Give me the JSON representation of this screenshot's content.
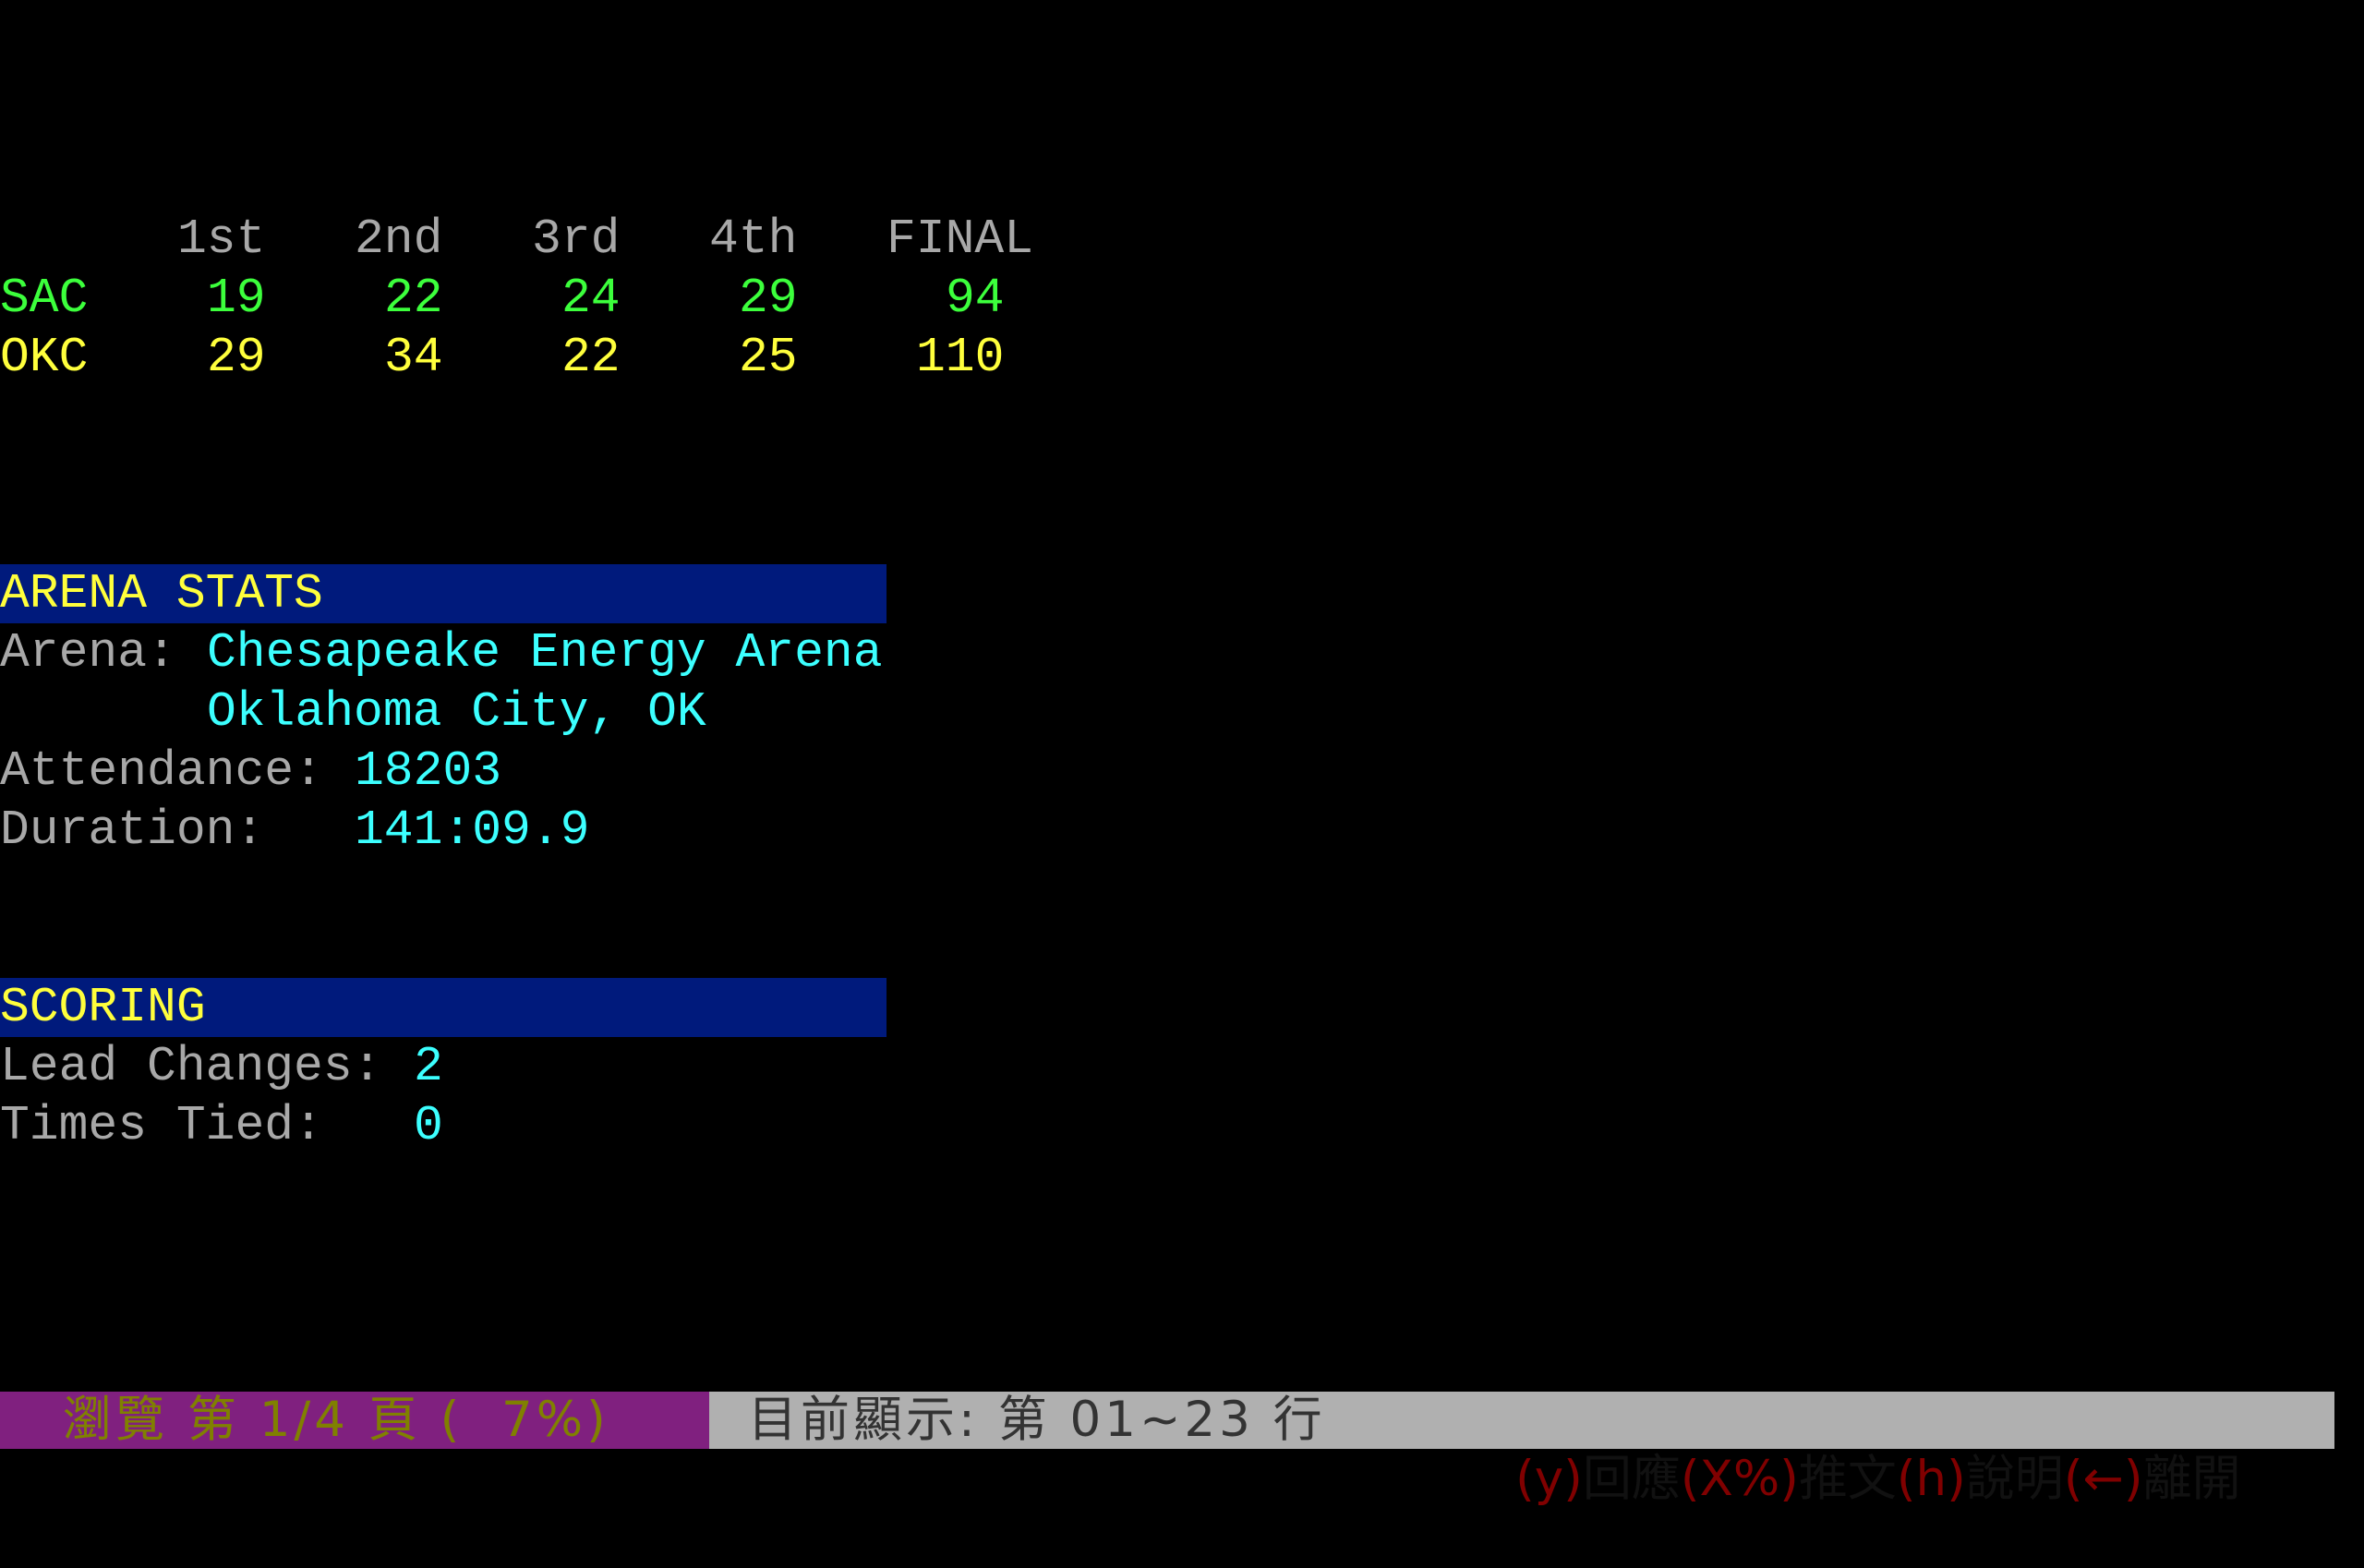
{
  "scoreboard": {
    "headers": [
      "1st",
      "2nd",
      "3rd",
      "4th",
      "FINAL"
    ],
    "teams": [
      {
        "name": "SAC",
        "scores": [
          "19",
          "22",
          "24",
          "29",
          "94"
        ],
        "color": "#3cff3c"
      },
      {
        "name": "OKC",
        "scores": [
          "29",
          "34",
          "22",
          "25",
          "110"
        ],
        "color": "#ffff3c"
      }
    ]
  },
  "arena": {
    "title": "ARENA STATS",
    "arena_label": "Arena:",
    "arena_name": "Chesapeake Energy Arena",
    "arena_city": "Oklahoma City, OK",
    "attendance_label": "Attendance:",
    "attendance": "18203",
    "duration_label": "Duration:",
    "duration": "141:09.9"
  },
  "scoring": {
    "title": "SCORING",
    "lead_changes_label": "Lead Changes:",
    "lead_changes": "2",
    "times_tied_label": "Times Tied:",
    "times_tied": "0"
  },
  "status_bar": {
    "page_info": "瀏覽 第 1/4 頁 (  7%)",
    "lines_info": "目前顯示: 第 01~23 行",
    "keys": [
      {
        "key": "(y)",
        "label": "回應"
      },
      {
        "key": "(X%)",
        "label": "推文"
      },
      {
        "key": "(h)",
        "label": "說明"
      },
      {
        "key": "(←)",
        "label": "離開"
      }
    ],
    "colors": {
      "page_bg": "#80207f",
      "page_fg": "#808000",
      "main_bg": "#b0b0b0",
      "main_fg": "#333333",
      "key_fg": "#800000"
    }
  }
}
